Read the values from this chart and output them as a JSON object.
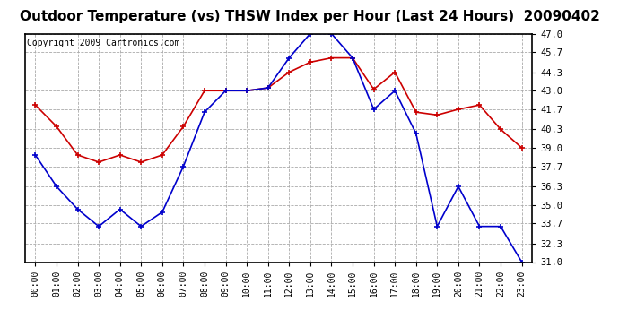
{
  "title": "Outdoor Temperature (vs) THSW Index per Hour (Last 24 Hours)  20090402",
  "copyright": "Copyright 2009 Cartronics.com",
  "hours": [
    "00:00",
    "01:00",
    "02:00",
    "03:00",
    "04:00",
    "05:00",
    "06:00",
    "07:00",
    "08:00",
    "09:00",
    "10:00",
    "11:00",
    "12:00",
    "13:00",
    "14:00",
    "15:00",
    "16:00",
    "17:00",
    "18:00",
    "19:00",
    "20:00",
    "21:00",
    "22:00",
    "23:00"
  ],
  "red_data": [
    42.0,
    40.5,
    38.5,
    38.0,
    38.5,
    38.0,
    38.5,
    40.5,
    43.0,
    43.0,
    43.0,
    43.2,
    44.3,
    45.0,
    45.3,
    45.3,
    43.1,
    44.3,
    41.5,
    41.3,
    41.7,
    42.0,
    40.3,
    39.0
  ],
  "blue_data": [
    38.5,
    36.3,
    34.7,
    33.5,
    34.7,
    33.5,
    34.5,
    37.7,
    41.5,
    43.0,
    43.0,
    43.2,
    45.3,
    47.0,
    47.0,
    45.3,
    41.7,
    43.0,
    40.0,
    33.5,
    36.3,
    33.5,
    33.5,
    31.0
  ],
  "ylim_min": 31.0,
  "ylim_max": 47.0,
  "yticks": [
    31.0,
    32.3,
    33.7,
    35.0,
    36.3,
    37.7,
    39.0,
    40.3,
    41.7,
    43.0,
    44.3,
    45.7,
    47.0
  ],
  "red_color": "#cc0000",
  "blue_color": "#0000cc",
  "bg_color": "#ffffff",
  "plot_bg_color": "#ffffff",
  "grid_color": "#aaaaaa",
  "title_fontsize": 11,
  "copyright_fontsize": 7,
  "marker": "+"
}
